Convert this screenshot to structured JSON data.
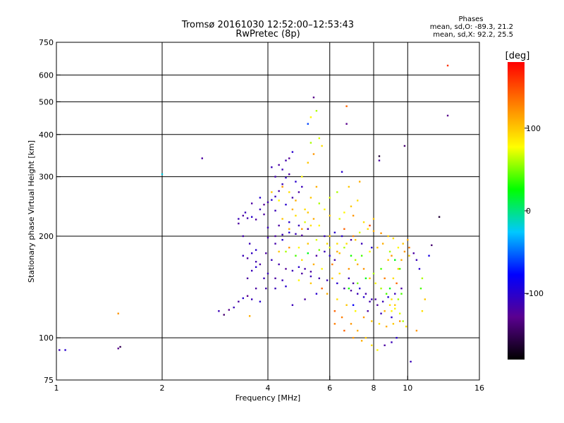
{
  "header": {
    "title": "Tromsø 20161030 12:52:00–12:53:43",
    "subtitle": "RwPretec (8p)",
    "phase_heading": "Phases",
    "phase_line_o": "mean, sd,O: -89.3, 21.2",
    "phase_line_x": "mean, sd,X:  92.2, 25.5"
  },
  "colorbar": {
    "unit_label": "[deg]",
    "range": [
      -180,
      180
    ],
    "ticks": [
      {
        "value": 100,
        "label": "100"
      },
      {
        "value": 0,
        "label": "0"
      },
      {
        "value": -100,
        "label": "-100"
      }
    ],
    "colors": [
      "#000000",
      "#5a0090",
      "#0000ff",
      "#00c8ff",
      "#00ff00",
      "#ffff00",
      "#ff8000",
      "#ff0000"
    ]
  },
  "chart_data": {
    "type": "scatter",
    "xlabel": "Frequency [MHz]",
    "ylabel": "Stationary phase Virtual Height [km]",
    "xscale": "log",
    "yscale": "log",
    "xlim": [
      1,
      16
    ],
    "ylim": [
      75,
      750
    ],
    "xticks": [
      1,
      2,
      4,
      6,
      8,
      10,
      16
    ],
    "yticks": [
      75,
      100,
      200,
      300,
      400,
      500,
      600,
      750
    ],
    "grid_x": [
      2,
      4,
      6,
      8,
      10
    ],
    "grid_y": [
      100,
      200,
      300,
      400,
      500,
      600
    ],
    "color_key": "phase [deg]",
    "points": [
      [
        1.02,
        92,
        -110
      ],
      [
        1.06,
        92,
        -100
      ],
      [
        1.5,
        93,
        -130
      ],
      [
        1.52,
        94,
        -150
      ],
      [
        1.5,
        118,
        120
      ],
      [
        2.0,
        305,
        -20
      ],
      [
        2.6,
        340,
        -120
      ],
      [
        2.9,
        120,
        -110
      ],
      [
        3.0,
        117,
        -140
      ],
      [
        3.1,
        121,
        -130
      ],
      [
        3.2,
        123,
        -110
      ],
      [
        3.3,
        128,
        -120
      ],
      [
        3.4,
        131,
        -100
      ],
      [
        3.5,
        133,
        -130
      ],
      [
        3.55,
        116,
        110
      ],
      [
        3.3,
        225,
        -110
      ],
      [
        3.4,
        230,
        -120
      ],
      [
        3.5,
        226,
        -115
      ],
      [
        3.6,
        228,
        -100
      ],
      [
        3.7,
        224,
        -120
      ],
      [
        3.8,
        240,
        -110
      ],
      [
        3.9,
        248,
        -125
      ],
      [
        4.0,
        252,
        -115
      ],
      [
        4.1,
        256,
        -100
      ],
      [
        4.2,
        262,
        -110
      ],
      [
        4.3,
        272,
        -120
      ],
      [
        4.4,
        285,
        -110
      ],
      [
        4.5,
        298,
        -105
      ],
      [
        4.1,
        320,
        -110
      ],
      [
        4.3,
        325,
        -120
      ],
      [
        4.5,
        335,
        -115
      ],
      [
        4.6,
        340,
        -125
      ],
      [
        4.7,
        355,
        -100
      ],
      [
        3.4,
        175,
        -110
      ],
      [
        3.5,
        172,
        -120
      ],
      [
        3.6,
        178,
        -105
      ],
      [
        3.7,
        168,
        -115
      ],
      [
        3.5,
        150,
        -120
      ],
      [
        3.6,
        158,
        -110
      ],
      [
        3.7,
        162,
        -100
      ],
      [
        4.0,
        198,
        -115
      ],
      [
        4.2,
        200,
        -120
      ],
      [
        4.4,
        202,
        -110
      ],
      [
        4.6,
        205,
        -100
      ],
      [
        4.8,
        203,
        -110
      ],
      [
        5.0,
        201,
        -120
      ],
      [
        4.3,
        165,
        -115
      ],
      [
        4.5,
        160,
        -125
      ],
      [
        4.7,
        158,
        -110
      ],
      [
        4.9,
        162,
        -100
      ],
      [
        5.1,
        160,
        -115
      ],
      [
        5.3,
        157,
        -120
      ],
      [
        4.2,
        140,
        -110
      ],
      [
        4.5,
        142,
        -100
      ],
      [
        5.5,
        175,
        -120
      ],
      [
        5.8,
        180,
        -110
      ],
      [
        6.0,
        175,
        -100
      ],
      [
        6.2,
        170,
        -115
      ],
      [
        5.2,
        430,
        -60
      ],
      [
        5.3,
        450,
        80
      ],
      [
        5.5,
        470,
        60
      ],
      [
        5.4,
        515,
        -130
      ],
      [
        5.6,
        390,
        70
      ],
      [
        5.7,
        370,
        90
      ],
      [
        5.3,
        378,
        60
      ],
      [
        6.7,
        485,
        140
      ],
      [
        6.7,
        430,
        -130
      ],
      [
        8.3,
        345,
        -160
      ],
      [
        8.3,
        335,
        -120
      ],
      [
        9.8,
        370,
        -140
      ],
      [
        6.5,
        310,
        -100
      ],
      [
        6.0,
        200,
        100
      ],
      [
        6.3,
        190,
        90
      ],
      [
        6.6,
        185,
        60
      ],
      [
        6.9,
        175,
        30
      ],
      [
        7.2,
        165,
        110
      ],
      [
        7.5,
        160,
        120
      ],
      [
        7.8,
        150,
        100
      ],
      [
        8.1,
        145,
        80
      ],
      [
        8.4,
        140,
        60
      ],
      [
        8.7,
        135,
        40
      ],
      [
        9.0,
        130,
        90
      ],
      [
        6.8,
        150,
        -110
      ],
      [
        7.0,
        145,
        -120
      ],
      [
        7.3,
        140,
        -100
      ],
      [
        7.6,
        135,
        -115
      ],
      [
        7.9,
        130,
        -110
      ],
      [
        8.2,
        125,
        -120
      ],
      [
        6.2,
        120,
        140
      ],
      [
        6.5,
        115,
        130
      ],
      [
        6.9,
        110,
        120
      ],
      [
        7.2,
        105,
        110
      ],
      [
        7.6,
        100,
        100
      ],
      [
        7.9,
        95,
        90
      ],
      [
        8.2,
        92,
        80
      ],
      [
        8.6,
        95,
        -120
      ],
      [
        9.0,
        97,
        -110
      ],
      [
        9.3,
        100,
        -100
      ],
      [
        9.0,
        120,
        80
      ],
      [
        9.2,
        125,
        100
      ],
      [
        9.4,
        130,
        60
      ],
      [
        9.6,
        135,
        40
      ],
      [
        8.9,
        140,
        20
      ],
      [
        9.1,
        150,
        90
      ],
      [
        9.4,
        160,
        100
      ],
      [
        9.6,
        170,
        110
      ],
      [
        9.8,
        180,
        120
      ],
      [
        10.1,
        185,
        130
      ],
      [
        10.4,
        178,
        -120
      ],
      [
        10.6,
        170,
        -110
      ],
      [
        10.8,
        160,
        -100
      ],
      [
        11.0,
        150,
        60
      ],
      [
        10.9,
        140,
        40
      ],
      [
        11.2,
        130,
        100
      ],
      [
        11.0,
        120,
        90
      ],
      [
        10.6,
        105,
        120
      ],
      [
        11.5,
        175,
        -90
      ],
      [
        11.7,
        188,
        -140
      ],
      [
        10.2,
        85,
        -110
      ],
      [
        12.3,
        228,
        -160
      ],
      [
        13.0,
        640,
        160
      ],
      [
        13.0,
        455,
        -130
      ],
      [
        10.1,
        175,
        100
      ],
      [
        7.0,
        200,
        130
      ],
      [
        7.3,
        205,
        70
      ],
      [
        7.7,
        210,
        90
      ],
      [
        8.0,
        207,
        110
      ],
      [
        8.4,
        204,
        120
      ],
      [
        8.8,
        200,
        100
      ],
      [
        9.1,
        197,
        90
      ],
      [
        6.4,
        225,
        70
      ],
      [
        6.6,
        235,
        80
      ],
      [
        6.9,
        245,
        100
      ],
      [
        7.2,
        255,
        90
      ],
      [
        5.6,
        250,
        60
      ],
      [
        5.8,
        240,
        80
      ],
      [
        6.0,
        230,
        100
      ],
      [
        5.4,
        225,
        110
      ],
      [
        5.1,
        220,
        70
      ],
      [
        4.8,
        230,
        90
      ],
      [
        4.6,
        210,
        110
      ],
      [
        4.9,
        185,
        80
      ],
      [
        5.2,
        190,
        100
      ],
      [
        5.5,
        195,
        70
      ],
      [
        4.3,
        180,
        100
      ],
      [
        4.6,
        185,
        120
      ],
      [
        5.0,
        170,
        90
      ],
      [
        5.4,
        165,
        110
      ],
      [
        5.7,
        160,
        80
      ],
      [
        6.1,
        150,
        100
      ],
      [
        6.4,
        155,
        90
      ],
      [
        6.8,
        160,
        120
      ],
      [
        7.1,
        170,
        60
      ],
      [
        7.4,
        175,
        40
      ],
      [
        7.8,
        180,
        80
      ],
      [
        8.2,
        185,
        100
      ],
      [
        8.5,
        190,
        110
      ],
      [
        8.9,
        180,
        60
      ],
      [
        9.2,
        170,
        20
      ],
      [
        9.5,
        160,
        40
      ],
      [
        5.9,
        135,
        110
      ],
      [
        6.3,
        130,
        90
      ],
      [
        6.7,
        125,
        100
      ],
      [
        7.1,
        120,
        80
      ],
      [
        7.5,
        115,
        120
      ],
      [
        7.9,
        112,
        100
      ],
      [
        8.3,
        110,
        90
      ],
      [
        8.7,
        108,
        110
      ],
      [
        9.1,
        110,
        100
      ],
      [
        9.5,
        112,
        120
      ],
      [
        4.0,
        155,
        -110
      ],
      [
        4.2,
        150,
        -120
      ],
      [
        4.4,
        148,
        -110
      ],
      [
        5.0,
        155,
        -120
      ],
      [
        5.3,
        152,
        -110
      ],
      [
        5.6,
        150,
        -115
      ],
      [
        5.9,
        148,
        -110
      ],
      [
        6.3,
        145,
        -100
      ],
      [
        6.6,
        140,
        -115
      ],
      [
        6.9,
        138,
        -120
      ],
      [
        7.2,
        135,
        -110
      ],
      [
        7.5,
        132,
        -100
      ],
      [
        7.8,
        128,
        -115
      ],
      [
        8.1,
        130,
        -120
      ],
      [
        8.5,
        128,
        -110
      ],
      [
        8.8,
        132,
        -100
      ],
      [
        9.2,
        135,
        -110
      ],
      [
        9.6,
        140,
        -120
      ],
      [
        4.0,
        212,
        -110
      ],
      [
        4.3,
        215,
        -120
      ],
      [
        4.6,
        220,
        -100
      ],
      [
        4.9,
        215,
        -110
      ],
      [
        5.2,
        210,
        -115
      ],
      [
        3.9,
        232,
        -120
      ],
      [
        4.2,
        238,
        -110
      ],
      [
        4.5,
        248,
        -100
      ],
      [
        4.7,
        260,
        -115
      ],
      [
        4.9,
        270,
        -120
      ],
      [
        5.0,
        280,
        -110
      ],
      [
        4.8,
        290,
        -100
      ],
      [
        4.6,
        305,
        -120
      ],
      [
        4.4,
        315,
        -110
      ],
      [
        4.2,
        300,
        -115
      ],
      [
        3.8,
        260,
        -100
      ],
      [
        3.6,
        250,
        -120
      ],
      [
        3.45,
        235,
        -110
      ],
      [
        3.3,
        218,
        -120
      ],
      [
        3.4,
        200,
        -115
      ],
      [
        3.55,
        190,
        -110
      ],
      [
        3.7,
        182,
        -100
      ],
      [
        3.8,
        165,
        -120
      ],
      [
        3.9,
        150,
        -110
      ],
      [
        3.95,
        140,
        -115
      ],
      [
        3.7,
        140,
        -120
      ],
      [
        3.6,
        130,
        -110
      ],
      [
        3.8,
        128,
        -100
      ],
      [
        3.95,
        178,
        -120
      ],
      [
        4.1,
        170,
        -110
      ],
      [
        4.2,
        190,
        -115
      ],
      [
        4.4,
        195,
        -100
      ],
      [
        5.1,
        240,
        90
      ],
      [
        5.3,
        260,
        100
      ],
      [
        5.5,
        280,
        110
      ],
      [
        5.0,
        300,
        80
      ],
      [
        5.2,
        330,
        100
      ],
      [
        5.4,
        350,
        120
      ],
      [
        6.0,
        260,
        70
      ],
      [
        6.3,
        270,
        60
      ],
      [
        6.8,
        280,
        100
      ],
      [
        7.3,
        290,
        110
      ],
      [
        7.0,
        230,
        120
      ],
      [
        7.5,
        220,
        90
      ],
      [
        8.0,
        225,
        100
      ],
      [
        4.5,
        180,
        60
      ],
      [
        4.8,
        175,
        40
      ],
      [
        5.2,
        178,
        20
      ],
      [
        5.6,
        182,
        50
      ],
      [
        6.0,
        185,
        70
      ],
      [
        6.4,
        178,
        100
      ],
      [
        6.8,
        140,
        30
      ],
      [
        7.2,
        145,
        50
      ],
      [
        7.6,
        150,
        20
      ],
      [
        8.0,
        155,
        60
      ],
      [
        8.4,
        160,
        40
      ],
      [
        6.5,
        200,
        -100
      ],
      [
        6.9,
        195,
        -120
      ],
      [
        7.4,
        190,
        -110
      ],
      [
        7.9,
        185,
        -100
      ],
      [
        6.6,
        210,
        140
      ],
      [
        7.8,
        215,
        150
      ],
      [
        8.6,
        150,
        130
      ],
      [
        9.3,
        145,
        140
      ],
      [
        5.7,
        140,
        140
      ],
      [
        6.1,
        165,
        130
      ],
      [
        7.0,
        125,
        -80
      ],
      [
        7.7,
        120,
        -120
      ],
      [
        8.4,
        118,
        -110
      ],
      [
        9.0,
        115,
        -100
      ],
      [
        5.8,
        200,
        -110
      ],
      [
        6.2,
        205,
        -100
      ],
      [
        4.7,
        125,
        -110
      ],
      [
        5.1,
        130,
        -120
      ],
      [
        5.5,
        135,
        -100
      ],
      [
        4.9,
        148,
        80
      ],
      [
        5.3,
        145,
        100
      ],
      [
        8.6,
        120,
        110
      ],
      [
        8.9,
        125,
        90
      ],
      [
        9.2,
        122,
        80
      ],
      [
        9.5,
        118,
        70
      ],
      [
        9.7,
        112,
        60
      ],
      [
        9.9,
        108,
        90
      ],
      [
        8.8,
        170,
        100
      ],
      [
        9.0,
        175,
        120
      ],
      [
        9.4,
        185,
        80
      ],
      [
        9.7,
        190,
        100
      ],
      [
        10.0,
        195,
        110
      ],
      [
        6.2,
        110,
        130
      ],
      [
        6.6,
        105,
        140
      ],
      [
        7.0,
        100,
        120
      ],
      [
        7.4,
        98,
        110
      ],
      [
        6.3,
        180,
        110
      ],
      [
        6.7,
        190,
        90
      ],
      [
        7.1,
        195,
        100
      ],
      [
        5.0,
        210,
        120
      ],
      [
        5.3,
        215,
        90
      ],
      [
        4.4,
        225,
        100
      ],
      [
        4.7,
        240,
        110
      ],
      [
        4.3,
        255,
        80
      ],
      [
        4.1,
        270,
        100
      ],
      [
        4.4,
        280,
        120
      ],
      [
        4.6,
        270,
        90
      ],
      [
        4.8,
        255,
        110
      ],
      [
        5.2,
        235,
        100
      ],
      [
        5.6,
        215,
        80
      ],
      [
        5.9,
        190,
        90
      ]
    ]
  },
  "axis_labels": {
    "x_ticks": [
      {
        "value": 1,
        "label": "1"
      },
      {
        "value": 2,
        "label": "2"
      },
      {
        "value": 4,
        "label": "4"
      },
      {
        "value": 6,
        "label": "6"
      },
      {
        "value": 8,
        "label": "8"
      },
      {
        "value": 10,
        "label": "10"
      },
      {
        "value": 16,
        "label": "16"
      }
    ],
    "y_ticks": [
      {
        "value": 75,
        "label": "75"
      },
      {
        "value": 100,
        "label": "100"
      },
      {
        "value": 200,
        "label": "200"
      },
      {
        "value": 300,
        "label": "300"
      },
      {
        "value": 400,
        "label": "400"
      },
      {
        "value": 500,
        "label": "500"
      },
      {
        "value": 600,
        "label": "600"
      },
      {
        "value": 750,
        "label": "750"
      }
    ]
  }
}
